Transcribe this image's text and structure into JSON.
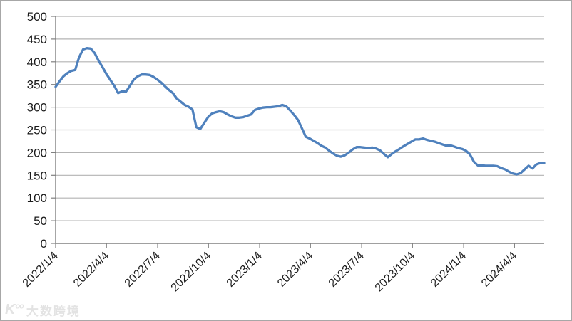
{
  "watermark": {
    "logo": "K",
    "logo_sup": "oo",
    "text": "大数跨境"
  },
  "chart_data": {
    "type": "line",
    "title": "",
    "xlabel": "",
    "ylabel": "",
    "grid": true,
    "legend": "none",
    "ylim": [
      0,
      500
    ],
    "y_ticks": [
      0,
      50,
      100,
      150,
      200,
      250,
      300,
      350,
      400,
      450,
      500
    ],
    "x_tick_labels": [
      "2022/1/4",
      "2022/4/4",
      "2022/7/4",
      "2022/10/4",
      "2023/1/4",
      "2023/4/4",
      "2023/7/4",
      "2023/10/4",
      "2024/1/4",
      "2024/4/4"
    ],
    "x_tick_weeks": [
      0,
      13,
      26.1,
      39.1,
      52.2,
      65.2,
      78.3,
      91.3,
      104.4,
      117.4
    ],
    "x_range_weeks": 125,
    "line_color": "#4F81BD",
    "axis_color": "#808080",
    "grid_color": "#B3B3B3",
    "series": [
      {
        "name": "price",
        "values": [
          345,
          357,
          368,
          375,
          380,
          382,
          410,
          427,
          430,
          429,
          419,
          402,
          388,
          373,
          360,
          347,
          331,
          335,
          334,
          347,
          361,
          368,
          372,
          372,
          371,
          367,
          361,
          354,
          346,
          338,
          331,
          319,
          312,
          305,
          301,
          295,
          256,
          252,
          265,
          278,
          286,
          289,
          291,
          289,
          284,
          280,
          277,
          277,
          278,
          281,
          284,
          294,
          297,
          299,
          300,
          300,
          301,
          302,
          305,
          302,
          293,
          283,
          272,
          254,
          235,
          231,
          226,
          221,
          215,
          211,
          204,
          198,
          193,
          191,
          194,
          200,
          207,
          212,
          212,
          211,
          210,
          211,
          209,
          205,
          197,
          190,
          197,
          203,
          208,
          214,
          219,
          224,
          229,
          229,
          231,
          228,
          226,
          224,
          221,
          218,
          215,
          216,
          213,
          210,
          208,
          204,
          196,
          180,
          172,
          172,
          171,
          171,
          171,
          170,
          166,
          163,
          158,
          154,
          152,
          155,
          163,
          171,
          165,
          174,
          177,
          177
        ]
      }
    ]
  }
}
